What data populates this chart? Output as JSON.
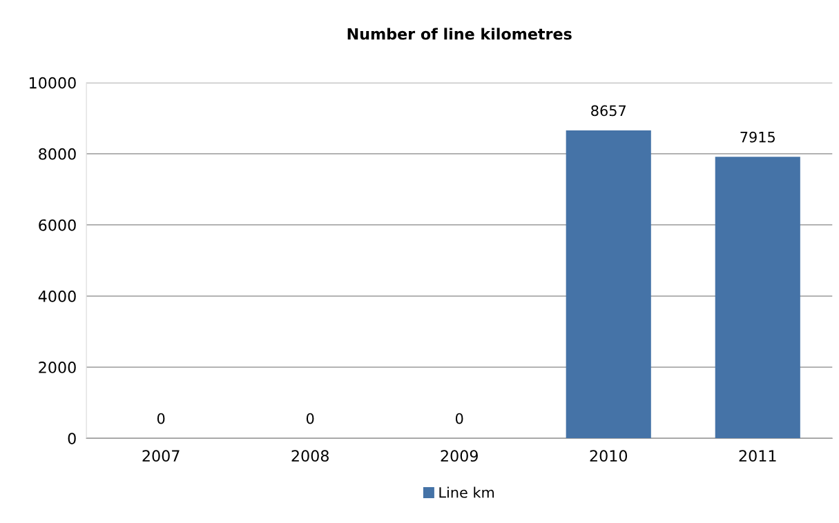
{
  "chart_data": {
    "type": "bar",
    "title": "Number of line kilometres",
    "categories": [
      "2007",
      "2008",
      "2009",
      "2010",
      "2011"
    ],
    "series": [
      {
        "name": "Line km",
        "color": "#4573a7",
        "values": [
          0,
          0,
          0,
          8657,
          7915
        ]
      }
    ],
    "ylim": [
      0,
      10000
    ],
    "yticks": [
      0,
      2000,
      4000,
      6000,
      8000,
      10000
    ],
    "grid": "y",
    "legend": "bottom",
    "data_labels": true
  }
}
